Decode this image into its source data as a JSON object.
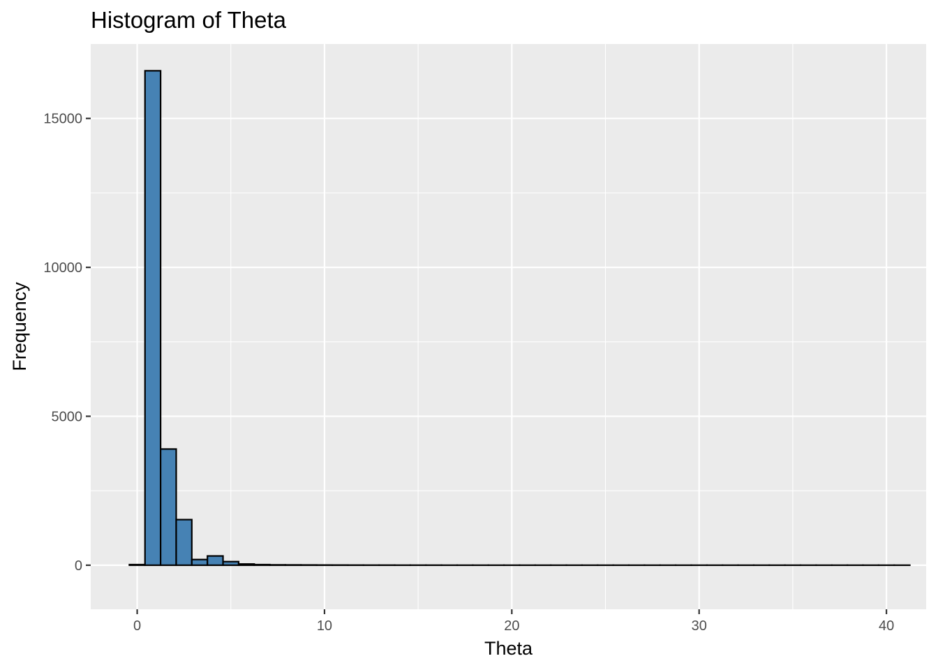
{
  "chart_data": {
    "type": "bar",
    "title": "Histogram of Theta",
    "xlabel": "Theta",
    "ylabel": "Frequency",
    "xlim": [
      -2.48,
      42.12
    ],
    "ylim": [
      -1480,
      17500
    ],
    "x_ticks": [
      0,
      10,
      20,
      30,
      40
    ],
    "x_tick_labels": [
      "0",
      "10",
      "20",
      "30",
      "40"
    ],
    "x_minor_ticks": [
      5,
      15,
      25,
      35
    ],
    "y_ticks": [
      0,
      5000,
      10000,
      15000
    ],
    "y_tick_labels": [
      "0",
      "5000",
      "10000",
      "15000"
    ],
    "y_minor_ticks": [
      2500,
      7500,
      12500
    ],
    "bin_width": 0.8333,
    "bin_start": -0.4167,
    "values": [
      20,
      16600,
      3900,
      1530,
      190,
      310,
      120,
      40,
      20,
      12,
      10,
      8,
      6,
      5,
      4,
      3,
      3,
      2,
      2,
      2,
      1,
      1,
      1,
      1,
      1,
      1,
      1,
      1,
      1,
      1,
      1,
      1,
      1,
      1,
      1,
      1,
      1,
      1,
      1,
      1,
      1,
      1,
      1,
      1,
      1,
      1,
      1,
      1,
      1,
      1
    ],
    "grid": true,
    "colors": {
      "fill": "#4682b4",
      "outline": "#000000",
      "panel": "#ebebeb",
      "gridline": "#ffffff"
    }
  }
}
